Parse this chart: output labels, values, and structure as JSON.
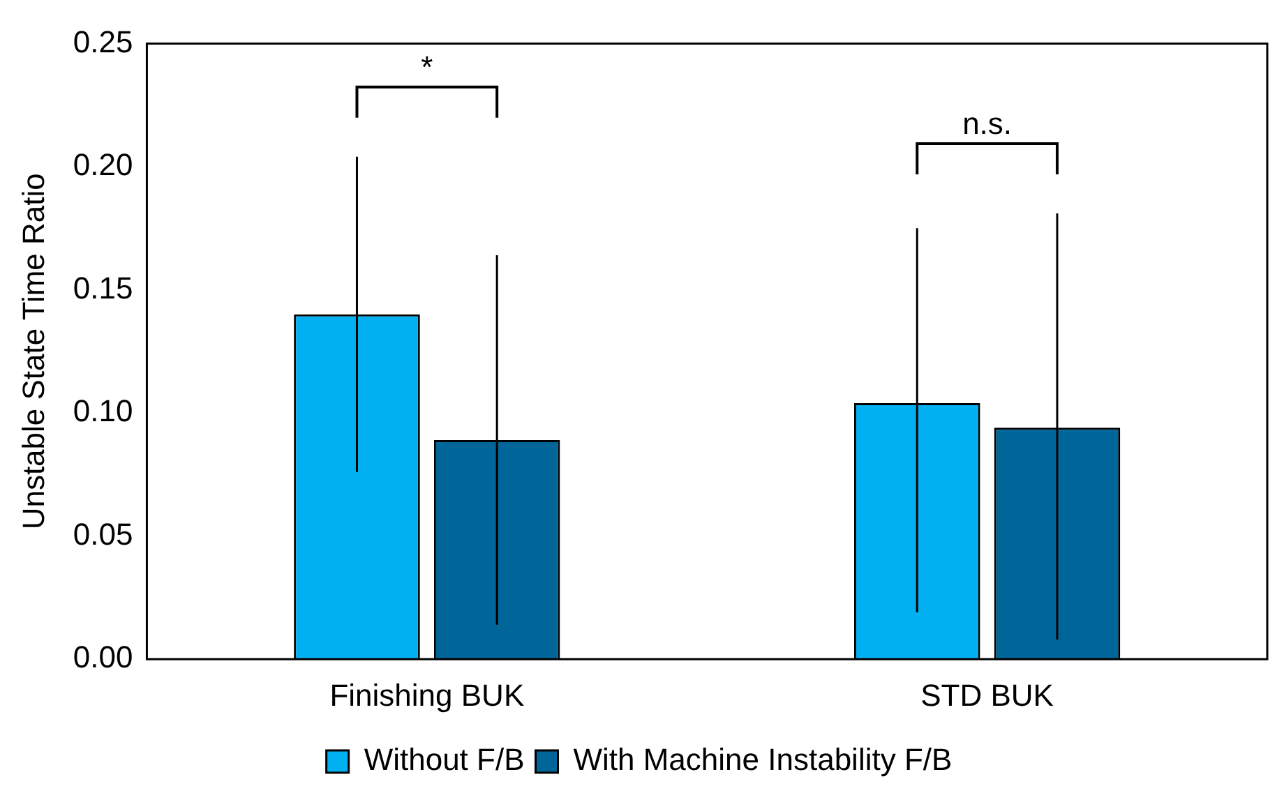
{
  "chart_data": {
    "type": "bar",
    "ylabel": "Unstable State Time Ratio",
    "categories": [
      "Finishing BUK",
      "STD BUK"
    ],
    "series": [
      {
        "name": "Without F/B",
        "color": "#00b0f0",
        "values": [
          0.14,
          0.104
        ],
        "errors": [
          [
            0.076,
            0.204
          ],
          [
            0.019,
            0.175
          ]
        ]
      },
      {
        "name": "With Machine Instability F/B",
        "color": "#006699",
        "values": [
          0.089,
          0.094
        ],
        "errors": [
          [
            0.014,
            0.164
          ],
          [
            0.008,
            0.181
          ]
        ]
      }
    ],
    "ylim": [
      0,
      0.25
    ],
    "yticks": [
      {
        "value": 0,
        "label": "0.00"
      },
      {
        "value": 0.05,
        "label": "0.05"
      },
      {
        "value": 0.1,
        "label": "0.10"
      },
      {
        "value": 0.15,
        "label": "0.15"
      },
      {
        "value": 0.2,
        "label": "0.20"
      },
      {
        "value": 0.25,
        "label": "0.25"
      }
    ],
    "grid": false,
    "legend": "bottom",
    "annotations": [
      "*",
      "n.s."
    ]
  }
}
